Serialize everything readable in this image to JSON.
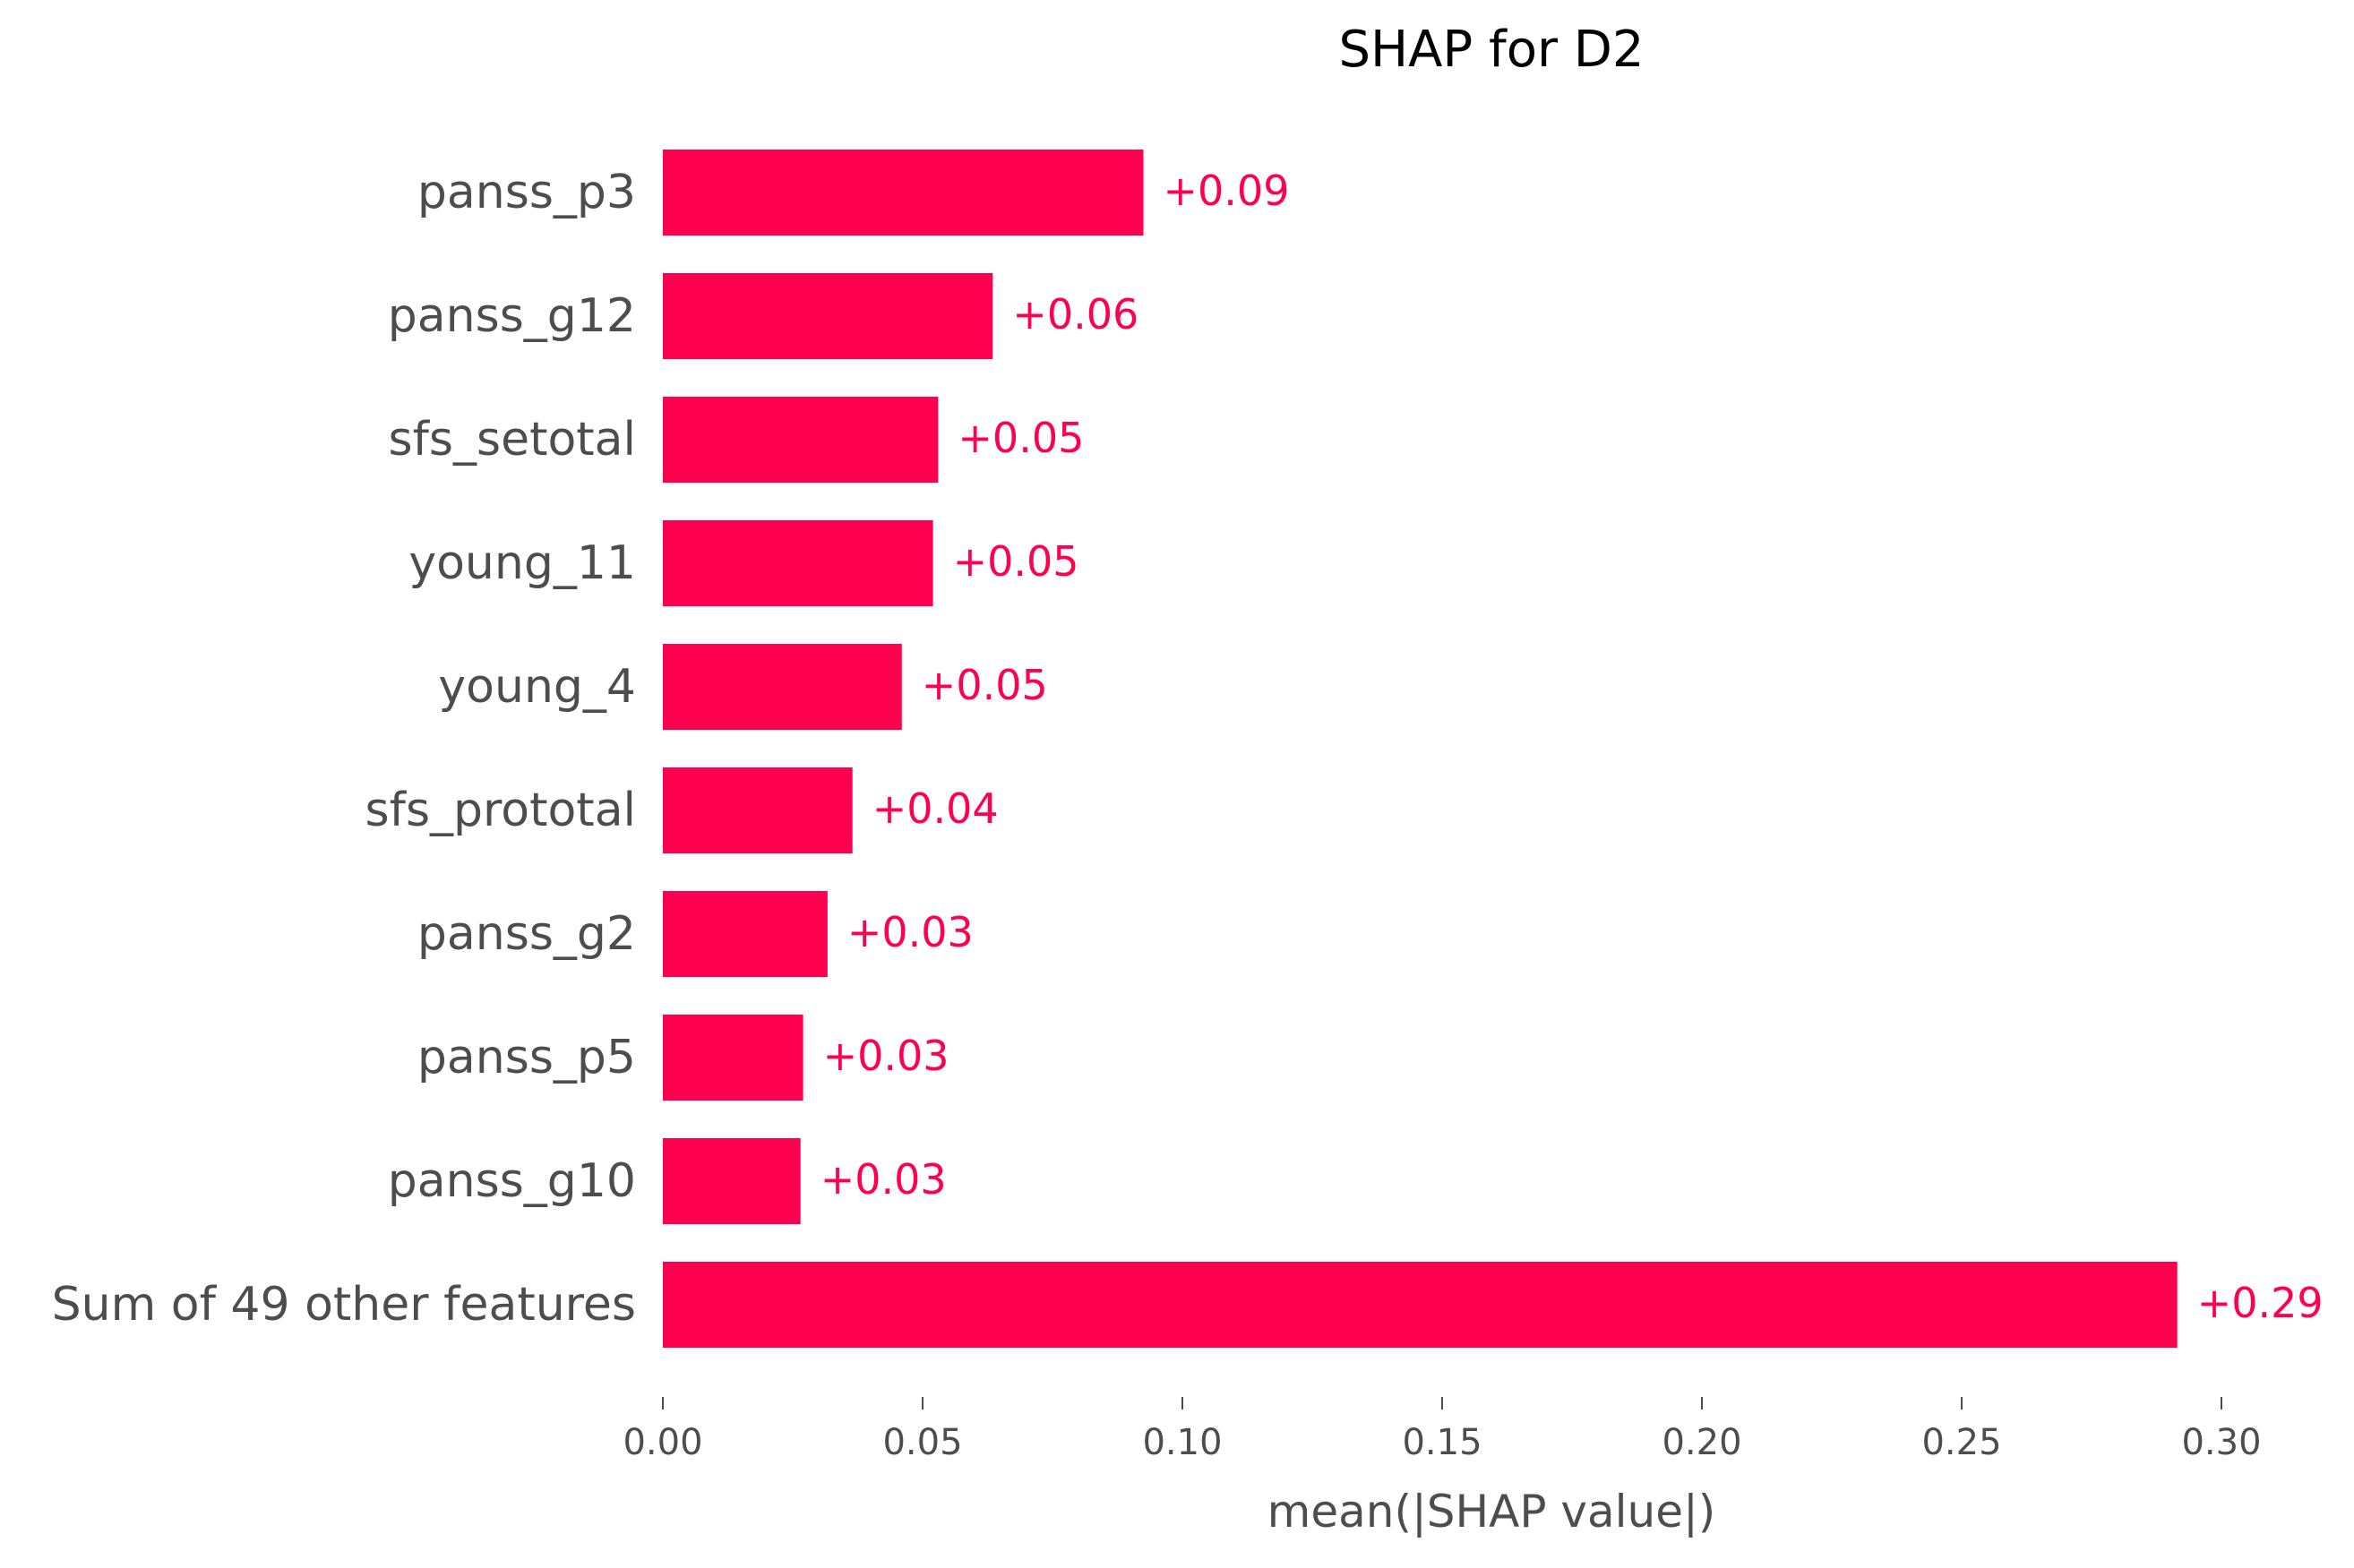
{
  "chart_data": {
    "type": "bar",
    "orientation": "horizontal",
    "title": "SHAP for D2",
    "xlabel": "mean(|SHAP value|)",
    "ylabel": "",
    "xlim": [
      0,
      0.3
    ],
    "xticks": [
      0.0,
      0.05,
      0.1,
      0.15,
      0.2,
      0.25,
      0.3
    ],
    "xtick_labels": [
      "0.00",
      "0.05",
      "0.10",
      "0.15",
      "0.20",
      "0.25",
      "0.30"
    ],
    "grid": false,
    "legend": "none",
    "bar_color": "#ff0051",
    "categories": [
      "panss_p3",
      "panss_g12",
      "sfs_setotal",
      "young_11",
      "young_4",
      "sfs_prototal",
      "panss_g2",
      "panss_p5",
      "panss_g10",
      "Sum of 49 other features"
    ],
    "values": [
      0.0925,
      0.0635,
      0.053,
      0.052,
      0.046,
      0.0365,
      0.0317,
      0.027,
      0.0265,
      0.2915
    ],
    "data_labels": [
      "+0.09",
      "+0.06",
      "+0.05",
      "+0.05",
      "+0.05",
      "+0.04",
      "+0.03",
      "+0.03",
      "+0.03",
      "+0.29"
    ]
  }
}
